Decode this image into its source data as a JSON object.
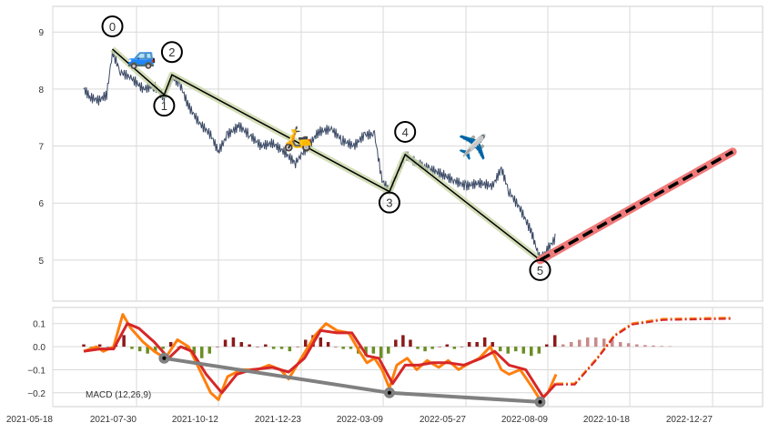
{
  "chart_data": [
    {
      "type": "line",
      "panel": "price",
      "ylim": [
        4.28,
        9.45
      ],
      "yticks": [
        5,
        6,
        7,
        8,
        9
      ],
      "grid": true,
      "colors": {
        "price": "#3b4a66",
        "trend": "#000000",
        "trend_halo": "#c9d6a8",
        "projection": "#000000",
        "projection_halo": "#f07a7a"
      },
      "price": [
        [
          "2021-06-14",
          8.0
        ],
        [
          "2021-06-20",
          7.85
        ],
        [
          "2021-06-27",
          7.8
        ],
        [
          "2021-07-04",
          7.9
        ],
        [
          "2021-07-09",
          8.65
        ],
        [
          "2021-07-16",
          8.3
        ],
        [
          "2021-07-25",
          8.2
        ],
        [
          "2021-08-05",
          8.0
        ],
        [
          "2021-08-15",
          8.05
        ],
        [
          "2021-08-24",
          7.85
        ],
        [
          "2021-08-31",
          8.2
        ],
        [
          "2021-09-07",
          8.1
        ],
        [
          "2021-09-15",
          7.7
        ],
        [
          "2021-09-25",
          7.4
        ],
        [
          "2021-10-05",
          7.2
        ],
        [
          "2021-10-12",
          6.9
        ],
        [
          "2021-10-20",
          7.2
        ],
        [
          "2021-10-30",
          7.35
        ],
        [
          "2021-11-08",
          7.2
        ],
        [
          "2021-11-18",
          7.0
        ],
        [
          "2021-11-28",
          7.05
        ],
        [
          "2021-12-08",
          6.9
        ],
        [
          "2021-12-18",
          6.7
        ],
        [
          "2021-12-23",
          6.85
        ],
        [
          "2021-12-30",
          7.0
        ],
        [
          "2022-01-08",
          7.25
        ],
        [
          "2022-01-20",
          7.3
        ],
        [
          "2022-01-30",
          7.1
        ],
        [
          "2022-02-10",
          7.0
        ],
        [
          "2022-02-20",
          7.2
        ],
        [
          "2022-03-01",
          7.2
        ],
        [
          "2022-03-08",
          6.4
        ],
        [
          "2022-03-15",
          6.2
        ],
        [
          "2022-03-22",
          6.5
        ],
        [
          "2022-03-30",
          6.85
        ],
        [
          "2022-04-10",
          6.7
        ],
        [
          "2022-04-22",
          6.6
        ],
        [
          "2022-05-05",
          6.5
        ],
        [
          "2022-05-15",
          6.4
        ],
        [
          "2022-05-27",
          6.3
        ],
        [
          "2022-06-08",
          6.35
        ],
        [
          "2022-06-20",
          6.3
        ],
        [
          "2022-06-28",
          6.6
        ],
        [
          "2022-07-05",
          6.2
        ],
        [
          "2022-07-15",
          5.9
        ],
        [
          "2022-07-25",
          5.5
        ],
        [
          "2022-08-02",
          5.0
        ],
        [
          "2022-08-09",
          5.2
        ],
        [
          "2022-08-16",
          5.4
        ]
      ],
      "pivots": [
        {
          "label": "0",
          "date": "2021-07-09",
          "value": 8.7,
          "pos": "above"
        },
        {
          "label": "1",
          "date": "2021-08-24",
          "value": 7.9,
          "pos": "below"
        },
        {
          "label": "2",
          "date": "2021-08-31",
          "value": 8.25,
          "pos": "above"
        },
        {
          "label": "3",
          "date": "2022-03-15",
          "value": 6.2,
          "pos": "below"
        },
        {
          "label": "4",
          "date": "2022-03-30",
          "value": 6.85,
          "pos": "above"
        },
        {
          "label": "5",
          "date": "2022-08-02",
          "value": 5.0,
          "pos": "below"
        }
      ],
      "projection": [
        [
          "2022-08-02",
          5.0
        ],
        [
          "2023-01-13",
          6.9
        ]
      ],
      "markers": [
        {
          "icon": "car-icon",
          "glyph": "🚙",
          "date": "2021-08-04",
          "value": 8.6
        },
        {
          "icon": "scooter-icon",
          "glyph": "🛵",
          "date": "2021-12-20",
          "value": 7.15
        },
        {
          "icon": "airplane-icon",
          "glyph": "✈️",
          "date": "2022-06-02",
          "value": 7.0
        }
      ]
    },
    {
      "type": "line",
      "panel": "macd",
      "label": "MACD (12,26,9)",
      "ylim": [
        -0.26,
        0.17
      ],
      "yticks": [
        0.1,
        0.0,
        -0.1,
        -0.2
      ],
      "ytick_labels": [
        "0.1",
        "0.0",
        "−0.1",
        "−0.2"
      ],
      "grid": true,
      "colors": {
        "macd": "#ff7f0e",
        "signal": "#d62728",
        "hist_pos": "#8b1a1a",
        "hist_neg": "#6b8e23",
        "hist_proj": "#c98a8a",
        "divergence": "#808080"
      },
      "macd": [
        [
          "2021-06-14",
          -0.02
        ],
        [
          "2021-06-25",
          0.0
        ],
        [
          "2021-07-01",
          -0.02
        ],
        [
          "2021-07-10",
          0.0
        ],
        [
          "2021-07-18",
          0.14
        ],
        [
          "2021-07-25",
          0.08
        ],
        [
          "2021-08-05",
          0.02
        ],
        [
          "2021-08-15",
          -0.02
        ],
        [
          "2021-08-25",
          -0.05
        ],
        [
          "2021-09-05",
          0.03
        ],
        [
          "2021-09-15",
          0.0
        ],
        [
          "2021-09-25",
          -0.1
        ],
        [
          "2021-10-05",
          -0.2
        ],
        [
          "2021-10-12",
          -0.23
        ],
        [
          "2021-10-20",
          -0.13
        ],
        [
          "2021-11-01",
          -0.1
        ],
        [
          "2021-11-15",
          -0.1
        ],
        [
          "2021-11-25",
          -0.08
        ],
        [
          "2021-12-05",
          -0.1
        ],
        [
          "2021-12-12",
          -0.14
        ],
        [
          "2021-12-23",
          -0.05
        ],
        [
          "2022-01-05",
          0.05
        ],
        [
          "2022-01-15",
          0.1
        ],
        [
          "2022-01-25",
          0.07
        ],
        [
          "2022-02-05",
          0.06
        ],
        [
          "2022-02-15",
          -0.02
        ],
        [
          "2022-02-22",
          -0.07
        ],
        [
          "2022-03-01",
          -0.05
        ],
        [
          "2022-03-08",
          -0.1
        ],
        [
          "2022-03-15",
          -0.18
        ],
        [
          "2022-03-22",
          -0.08
        ],
        [
          "2022-04-01",
          -0.05
        ],
        [
          "2022-04-10",
          -0.1
        ],
        [
          "2022-04-20",
          -0.06
        ],
        [
          "2022-05-01",
          -0.09
        ],
        [
          "2022-05-10",
          -0.06
        ],
        [
          "2022-05-20",
          -0.1
        ],
        [
          "2022-05-27",
          -0.08
        ],
        [
          "2022-06-08",
          -0.05
        ],
        [
          "2022-06-18",
          0.0
        ],
        [
          "2022-06-28",
          -0.1
        ],
        [
          "2022-07-05",
          -0.12
        ],
        [
          "2022-07-15",
          -0.1
        ],
        [
          "2022-07-25",
          -0.17
        ],
        [
          "2022-08-02",
          -0.23
        ],
        [
          "2022-08-09",
          -0.2
        ],
        [
          "2022-08-16",
          -0.12
        ]
      ],
      "signal": [
        [
          "2021-06-14",
          -0.02
        ],
        [
          "2021-06-28",
          -0.01
        ],
        [
          "2021-07-10",
          -0.01
        ],
        [
          "2021-07-22",
          0.1
        ],
        [
          "2021-08-01",
          0.08
        ],
        [
          "2021-08-15",
          0.02
        ],
        [
          "2021-08-28",
          -0.05
        ],
        [
          "2021-09-08",
          0.0
        ],
        [
          "2021-09-18",
          -0.02
        ],
        [
          "2021-10-01",
          -0.12
        ],
        [
          "2021-10-15",
          -0.2
        ],
        [
          "2021-10-28",
          -0.12
        ],
        [
          "2021-11-10",
          -0.1
        ],
        [
          "2021-11-28",
          -0.09
        ],
        [
          "2021-12-12",
          -0.11
        ],
        [
          "2021-12-26",
          -0.05
        ],
        [
          "2022-01-10",
          0.07
        ],
        [
          "2022-01-25",
          0.06
        ],
        [
          "2022-02-08",
          0.06
        ],
        [
          "2022-02-22",
          -0.04
        ],
        [
          "2022-03-05",
          -0.05
        ],
        [
          "2022-03-18",
          -0.16
        ],
        [
          "2022-03-30",
          -0.08
        ],
        [
          "2022-04-12",
          -0.08
        ],
        [
          "2022-04-25",
          -0.07
        ],
        [
          "2022-05-10",
          -0.07
        ],
        [
          "2022-05-25",
          -0.08
        ],
        [
          "2022-06-10",
          -0.05
        ],
        [
          "2022-06-22",
          -0.02
        ],
        [
          "2022-07-05",
          -0.08
        ],
        [
          "2022-07-20",
          -0.1
        ],
        [
          "2022-08-05",
          -0.22
        ],
        [
          "2022-08-16",
          -0.16
        ]
      ],
      "projection": [
        [
          "2022-08-16",
          -0.16
        ],
        [
          "2022-09-01",
          -0.16
        ],
        [
          "2022-09-20",
          -0.05
        ],
        [
          "2022-10-05",
          0.05
        ],
        [
          "2022-10-20",
          0.1
        ],
        [
          "2022-11-15",
          0.12
        ],
        [
          "2023-01-13",
          0.125
        ]
      ],
      "histogram": [
        [
          "2021-06-14",
          0.01
        ],
        [
          "2021-06-21",
          -0.01
        ],
        [
          "2021-06-28",
          0.01
        ],
        [
          "2021-07-05",
          0.0
        ],
        [
          "2021-07-12",
          0.03
        ],
        [
          "2021-07-19",
          0.05
        ],
        [
          "2021-07-26",
          -0.01
        ],
        [
          "2021-08-02",
          -0.02
        ],
        [
          "2021-08-09",
          -0.03
        ],
        [
          "2021-08-16",
          -0.02
        ],
        [
          "2021-08-23",
          -0.01
        ],
        [
          "2021-08-30",
          0.02
        ],
        [
          "2021-09-06",
          0.0
        ],
        [
          "2021-09-13",
          -0.01
        ],
        [
          "2021-09-20",
          -0.03
        ],
        [
          "2021-09-27",
          -0.05
        ],
        [
          "2021-10-04",
          -0.03
        ],
        [
          "2021-10-11",
          0.0
        ],
        [
          "2021-10-18",
          0.03
        ],
        [
          "2021-10-25",
          0.04
        ],
        [
          "2021-11-01",
          0.02
        ],
        [
          "2021-11-08",
          0.01
        ],
        [
          "2021-11-15",
          0.0
        ],
        [
          "2021-11-22",
          0.01
        ],
        [
          "2021-11-29",
          -0.01
        ],
        [
          "2021-12-06",
          -0.01
        ],
        [
          "2021-12-13",
          -0.02
        ],
        [
          "2021-12-20",
          0.0
        ],
        [
          "2021-12-27",
          0.03
        ],
        [
          "2022-01-03",
          0.05
        ],
        [
          "2022-01-10",
          0.04
        ],
        [
          "2022-01-17",
          0.02
        ],
        [
          "2022-01-24",
          0.0
        ],
        [
          "2022-01-31",
          -0.01
        ],
        [
          "2022-02-07",
          -0.01
        ],
        [
          "2022-02-14",
          -0.03
        ],
        [
          "2022-02-21",
          -0.04
        ],
        [
          "2022-02-28",
          -0.03
        ],
        [
          "2022-03-07",
          -0.05
        ],
        [
          "2022-03-14",
          -0.03
        ],
        [
          "2022-03-21",
          0.03
        ],
        [
          "2022-03-28",
          0.05
        ],
        [
          "2022-04-04",
          0.03
        ],
        [
          "2022-04-11",
          -0.01
        ],
        [
          "2022-04-18",
          -0.02
        ],
        [
          "2022-04-25",
          -0.01
        ],
        [
          "2022-05-02",
          0.0
        ],
        [
          "2022-05-09",
          0.01
        ],
        [
          "2022-05-16",
          -0.01
        ],
        [
          "2022-05-23",
          0.0
        ],
        [
          "2022-05-30",
          0.02
        ],
        [
          "2022-06-06",
          0.02
        ],
        [
          "2022-06-13",
          0.04
        ],
        [
          "2022-06-20",
          0.02
        ],
        [
          "2022-06-27",
          -0.02
        ],
        [
          "2022-07-04",
          -0.03
        ],
        [
          "2022-07-11",
          -0.02
        ],
        [
          "2022-07-18",
          -0.03
        ],
        [
          "2022-07-25",
          -0.04
        ],
        [
          "2022-08-01",
          -0.03
        ],
        [
          "2022-08-08",
          0.01
        ],
        [
          "2022-08-15",
          0.05
        ]
      ],
      "histogram_projection": [
        [
          "2022-08-22",
          0.01
        ],
        [
          "2022-08-29",
          0.02
        ],
        [
          "2022-09-05",
          0.03
        ],
        [
          "2022-09-12",
          0.04
        ],
        [
          "2022-09-19",
          0.04
        ],
        [
          "2022-09-26",
          0.035
        ],
        [
          "2022-10-03",
          0.03
        ],
        [
          "2022-10-10",
          0.02
        ],
        [
          "2022-10-17",
          0.015
        ],
        [
          "2022-10-24",
          0.01
        ],
        [
          "2022-10-31",
          0.007
        ],
        [
          "2022-11-07",
          0.005
        ],
        [
          "2022-11-14",
          0.003
        ],
        [
          "2022-11-21",
          0.002
        ]
      ],
      "divergence": [
        [
          "2021-08-24",
          -0.05
        ],
        [
          "2022-03-15",
          -0.2
        ],
        [
          "2022-08-02",
          -0.24
        ]
      ]
    }
  ],
  "xaxis": {
    "ticks": [
      "2021-05-18",
      "2021-07-30",
      "2021-10-12",
      "2021-12-23",
      "2022-03-09",
      "2022-05-27",
      "2022-08-09",
      "2022-10-18",
      "2022-12-27"
    ]
  }
}
